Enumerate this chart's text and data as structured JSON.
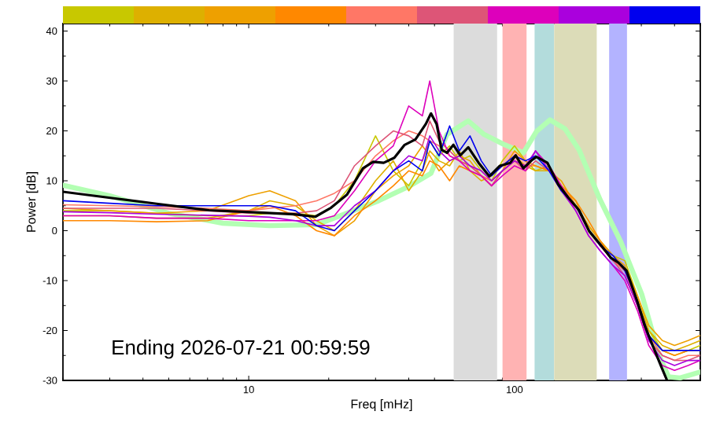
{
  "chart_data": {
    "type": "line",
    "xlabel": "Freq [mHz]",
    "ylabel": "Power [dB]",
    "log": "x",
    "marker": "none",
    "xlim": [
      2,
      500
    ],
    "ylim": [
      -30,
      41.5
    ],
    "xticks": [
      {
        "value": 2,
        "label": null
      },
      {
        "value": 3,
        "label": null
      },
      {
        "value": 4,
        "label": null
      },
      {
        "value": 5,
        "label": null
      },
      {
        "value": 6,
        "label": null
      },
      {
        "value": 7,
        "label": null
      },
      {
        "value": 8,
        "label": null
      },
      {
        "value": 9,
        "label": null
      },
      10,
      {
        "value": 20,
        "label": null
      },
      {
        "value": 30,
        "label": null
      },
      {
        "value": 40,
        "label": null
      },
      {
        "value": 50,
        "label": null
      },
      {
        "value": 60,
        "label": null
      },
      {
        "value": 70,
        "label": null
      },
      {
        "value": 80,
        "label": null
      },
      {
        "value": 90,
        "label": null
      },
      100,
      {
        "value": 200,
        "label": null
      },
      {
        "value": 300,
        "label": null
      },
      {
        "value": 400,
        "label": null
      },
      {
        "value": 500,
        "label": null
      }
    ],
    "yticks": [
      -30,
      {
        "value": -25,
        "label": null
      },
      -20,
      {
        "value": -15,
        "label": null
      },
      -10,
      {
        "value": -5,
        "label": null
      },
      0,
      {
        "value": 5,
        "label": null
      },
      10,
      {
        "value": 15,
        "label": null
      },
      20,
      {
        "value": 25,
        "label": null
      },
      30,
      {
        "value": 35,
        "label": null
      },
      40
    ],
    "bands": [
      {
        "axis": "x",
        "from": 59,
        "to": 86,
        "color": "#dcdcdc"
      },
      {
        "axis": "x",
        "from": 90,
        "to": 111,
        "color": "#ffb3b3"
      },
      {
        "axis": "x",
        "from": 119,
        "to": 141,
        "color": "#b3dcdc"
      },
      {
        "axis": "x",
        "from": 141,
        "to": 204,
        "color": "#dcdcb8"
      },
      {
        "axis": "x",
        "from": 227,
        "to": 265,
        "color": "#b3b3ff"
      }
    ],
    "annotations": [
      "Ending 2026-07-21 00:59:59"
    ],
    "x": [
      2,
      3,
      4.5,
      7,
      10,
      12,
      15,
      18,
      21,
      25,
      30,
      35,
      40,
      45,
      48,
      52,
      57,
      62,
      68,
      75,
      82,
      90,
      100,
      110,
      120,
      135,
      150,
      170,
      190,
      210,
      235,
      260,
      290,
      320,
      360,
      400,
      450,
      500
    ],
    "series": [
      {
        "color": "#b3ffb3",
        "x": [
          2,
          3,
          5,
          8,
          12,
          18,
          23.4,
          30.8,
          40.5,
          48.5,
          55.7,
          67,
          76.7,
          92,
          108,
          121,
          136,
          155,
          175,
          210,
          251,
          301,
          350,
          380,
          420,
          500
        ],
        "values": [
          9.1,
          7,
          3.5,
          1.5,
          1.0,
          1.2,
          3.5,
          6,
          9,
          11.5,
          19.3,
          22,
          19.3,
          17.2,
          15.6,
          19.9,
          22.2,
          20.4,
          16.2,
          6.2,
          -2.2,
          -12.7,
          -25,
          -29.3,
          -29.5,
          -28.3
        ]
      },
      {
        "color": "#c8c800",
        "values": [
          4,
          4,
          3.5,
          3,
          3,
          3.5,
          3.5,
          3,
          5,
          10,
          19,
          12,
          9,
          14,
          18,
          15,
          17,
          14,
          15,
          12,
          10,
          14,
          17,
          14,
          12,
          13,
          9,
          5,
          1,
          -2,
          -5,
          -6,
          -13,
          -20,
          -24,
          -25,
          -24,
          -23
        ]
      },
      {
        "color": "#ddb000",
        "values": [
          3,
          3,
          2.5,
          2.5,
          4,
          6,
          5,
          2,
          0,
          4,
          10,
          14,
          8,
          12,
          16,
          14,
          13,
          16,
          12,
          10,
          11,
          13,
          15,
          13,
          12,
          12,
          9,
          6,
          0,
          -3,
          -6,
          -8,
          -14,
          -20,
          -23,
          -24,
          -23,
          -22
        ]
      },
      {
        "color": "#eea000",
        "values": [
          4.5,
          4,
          3.5,
          4,
          7,
          8,
          6,
          1,
          -1,
          2,
          8,
          11,
          13,
          17,
          15,
          12,
          14,
          15,
          14,
          11,
          10,
          12,
          16,
          14,
          13,
          12,
          10,
          5,
          1,
          -2,
          -5,
          -7,
          -13,
          -19,
          -22,
          -23,
          -22,
          -21
        ]
      },
      {
        "color": "#ff8800",
        "values": [
          2,
          2,
          1.8,
          2,
          4,
          5,
          3,
          0,
          -1,
          3,
          6,
          9,
          12,
          11,
          14,
          13,
          10,
          13,
          12,
          11,
          9,
          12,
          14,
          13,
          13,
          12,
          9,
          6,
          2,
          -2,
          -6,
          -8,
          -14,
          -21,
          -24,
          -25,
          -24,
          -24
        ]
      },
      {
        "color": "#ff7766",
        "values": [
          5.2,
          5,
          4.8,
          4.5,
          4,
          4.5,
          5,
          6,
          7.5,
          10,
          15,
          18,
          20,
          19,
          18,
          17,
          15,
          14,
          13,
          11,
          10,
          12,
          14,
          13,
          15,
          13,
          9,
          5,
          0,
          -3,
          -6,
          -8,
          -15,
          -21,
          -25,
          -26,
          -25,
          -25
        ]
      },
      {
        "color": "#dd5577",
        "values": [
          4.5,
          4.5,
          4.5,
          4,
          3.5,
          3.5,
          3.5,
          4,
          6,
          13,
          17,
          20,
          19,
          17,
          22,
          18,
          16,
          14,
          13,
          11,
          9,
          12,
          14,
          12,
          14,
          12,
          8,
          5,
          0,
          -3,
          -6,
          -9,
          -15,
          -22,
          -25,
          -26,
          -26,
          -25
        ]
      },
      {
        "color": "#dd00bb",
        "values": [
          3,
          3,
          2.5,
          2.5,
          2,
          2,
          2,
          2,
          3,
          8,
          14,
          17,
          25,
          23,
          30,
          20,
          15,
          14,
          12,
          11,
          9,
          11,
          13,
          12,
          16,
          13,
          9,
          4,
          -1,
          -4,
          -7,
          -10,
          -16,
          -23,
          -27,
          -28,
          -27,
          -26
        ]
      },
      {
        "color": "#aa00dd",
        "values": [
          3.8,
          3.6,
          3.3,
          3.1,
          2.9,
          2.7,
          2,
          1,
          1,
          5,
          8,
          12,
          15,
          14,
          19,
          16,
          14,
          15,
          13,
          12,
          10,
          12,
          14,
          13,
          16,
          12,
          8,
          4,
          -1,
          -4,
          -7,
          -9,
          -15,
          -22,
          -26,
          -27,
          -26,
          -26
        ]
      },
      {
        "color": "#0000ee",
        "values": [
          6,
          5.5,
          5,
          5,
          5,
          5,
          4,
          1,
          0,
          4,
          8,
          12,
          14,
          12,
          18,
          15,
          21,
          16,
          19,
          14,
          11,
          13,
          15,
          14,
          15,
          12,
          8,
          5,
          0,
          -3,
          -5,
          -8,
          -14,
          -21,
          -24,
          -24,
          -24,
          -24
        ]
      },
      {
        "color": "#000000",
        "x": [
          2,
          2.9,
          4.5,
          7.1,
          11.3,
          14.8,
          17.8,
          20.4,
          23.4,
          26.9,
          29.4,
          32.2,
          35.3,
          38.6,
          42.4,
          46.4,
          48.5,
          50.9,
          53.2,
          55.7,
          58.9,
          62.5,
          67,
          73.3,
          80.4,
          88.1,
          96.4,
          101,
          108,
          116,
          121,
          133,
          146,
          159,
          175,
          191,
          210,
          230,
          246,
          264,
          289,
          309,
          331,
          355,
          375
        ],
        "values": [
          7.8,
          6.7,
          5.4,
          4.1,
          3.6,
          3.3,
          2.8,
          4.6,
          7.2,
          12.5,
          13.8,
          13.6,
          14.6,
          17.2,
          18.3,
          21.4,
          23.5,
          21.4,
          16.2,
          15.6,
          17.2,
          15.1,
          16.7,
          13.6,
          10.9,
          13,
          13.6,
          15.1,
          12.5,
          14.1,
          14.8,
          13.6,
          9.3,
          6.7,
          4.1,
          -0.1,
          -2.7,
          -5.4,
          -6.4,
          -8,
          -14,
          -19,
          -23,
          -27,
          -30
        ]
      }
    ]
  }
}
